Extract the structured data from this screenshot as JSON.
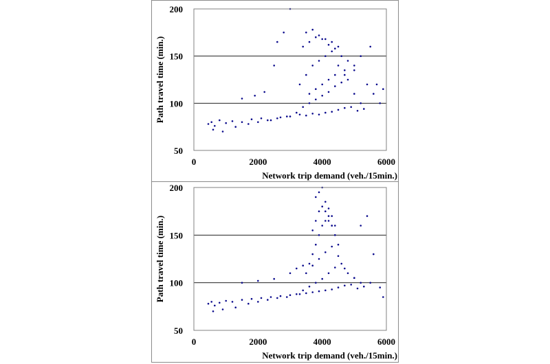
{
  "figure": {
    "panels": [
      {
        "id": "top",
        "ylabel": "Path travel time (min.)",
        "xlabel": "Network trip demand (veh./15min.)"
      },
      {
        "id": "bottom",
        "ylabel": "Path travel time (min.)",
        "xlabel": "Network trip demand (veh./15min.)"
      }
    ]
  },
  "chart_data": [
    {
      "type": "scatter",
      "title": "",
      "xlabel": "Network trip demand (veh./15min.)",
      "ylabel": "Path travel time (min.)",
      "xlim": [
        0,
        6000
      ],
      "ylim": [
        50,
        200
      ],
      "x_ticks": [
        "0",
        "2000",
        "4000",
        "6000"
      ],
      "y_ticks": [
        "50",
        "100",
        "150",
        "200"
      ],
      "grid": "horizontal",
      "point_color": "#0a0a8c",
      "series": [
        {
          "x": [
            450,
            550,
            650,
            800,
            1000,
            1200,
            1500,
            1800,
            2100,
            2400,
            2700,
            3000,
            3300,
            3500,
            3700,
            3900,
            4100,
            4300,
            4500,
            4700,
            4900,
            5100,
            5300,
            600,
            900,
            1300,
            1700,
            2000,
            2300,
            2600,
            2900,
            3200,
            3400,
            3600,
            3800,
            4000,
            4200,
            4400,
            4600,
            4800,
            5000,
            5200,
            3300,
            3500,
            3700,
            3900,
            4100,
            4300,
            4500,
            4700,
            3400,
            3600,
            3800,
            4000,
            4200,
            4400,
            4600,
            4800,
            5000,
            3500,
            3700,
            3900,
            4100,
            4300,
            4500,
            3600,
            3800,
            4000,
            4200,
            4400,
            4700,
            5000,
            5400,
            5600,
            5800,
            1500,
            1900,
            2200,
            2500,
            2600,
            2800,
            3000,
            5200,
            5500,
            5700,
            5900
          ],
          "y": [
            78,
            80,
            76,
            82,
            79,
            81,
            80,
            83,
            84,
            82,
            85,
            86,
            88,
            87,
            89,
            88,
            90,
            91,
            93,
            95,
            96,
            92,
            94,
            72,
            70,
            75,
            78,
            80,
            82,
            84,
            86,
            90,
            96,
            100,
            104,
            108,
            112,
            118,
            122,
            125,
            110,
            100,
            120,
            130,
            140,
            145,
            150,
            155,
            140,
            130,
            160,
            165,
            170,
            168,
            162,
            158,
            150,
            145,
            135,
            175,
            178,
            172,
            168,
            165,
            160,
            110,
            115,
            120,
            125,
            130,
            135,
            140,
            120,
            110,
            100,
            105,
            108,
            112,
            140,
            165,
            175,
            200,
            150,
            160,
            120,
            115
          ]
        }
      ]
    },
    {
      "type": "scatter",
      "title": "",
      "xlabel": "Network trip demand (veh./15min.)",
      "ylabel": "Path travel time (min.)",
      "xlim": [
        0,
        6000
      ],
      "ylim": [
        50,
        200
      ],
      "x_ticks": [
        "0",
        "2000",
        "4000",
        "6000"
      ],
      "y_ticks": [
        "50",
        "100",
        "150",
        "200"
      ],
      "grid": "horizontal",
      "point_color": "#0a0a8c",
      "series": [
        {
          "x": [
            450,
            550,
            650,
            800,
            1000,
            1200,
            1500,
            1800,
            2100,
            2400,
            2700,
            3000,
            3300,
            3500,
            3700,
            3900,
            4100,
            4300,
            4500,
            4700,
            4900,
            5100,
            5300,
            600,
            900,
            1300,
            1700,
            2000,
            2300,
            2600,
            2900,
            3200,
            3400,
            3600,
            3800,
            4000,
            4200,
            4400,
            4600,
            4800,
            5000,
            5200,
            3600,
            3700,
            3800,
            3900,
            4000,
            4100,
            4200,
            4300,
            4400,
            4500,
            3700,
            3800,
            3900,
            4000,
            4100,
            4200,
            4300,
            4400,
            3800,
            3900,
            4000,
            4100,
            4200,
            4300,
            4400,
            3500,
            3700,
            3900,
            4100,
            4300,
            4500,
            4700,
            5000,
            5500,
            5800,
            1500,
            2000,
            2500,
            3000,
            3200,
            3400,
            5200,
            5400,
            5600,
            5900
          ],
          "y": [
            78,
            80,
            76,
            79,
            81,
            80,
            82,
            83,
            84,
            85,
            86,
            87,
            88,
            89,
            90,
            91,
            92,
            93,
            95,
            97,
            98,
            94,
            96,
            70,
            72,
            74,
            78,
            80,
            82,
            84,
            85,
            88,
            92,
            96,
            100,
            104,
            110,
            116,
            120,
            110,
            105,
            100,
            120,
            130,
            140,
            150,
            160,
            165,
            170,
            160,
            150,
            140,
            155,
            165,
            175,
            180,
            185,
            178,
            170,
            160,
            190,
            195,
            200,
            175,
            165,
            160,
            150,
            110,
            118,
            125,
            132,
            138,
            128,
            115,
            105,
            100,
            95,
            100,
            102,
            104,
            110,
            115,
            118,
            160,
            170,
            130,
            85
          ]
        }
      ]
    }
  ]
}
